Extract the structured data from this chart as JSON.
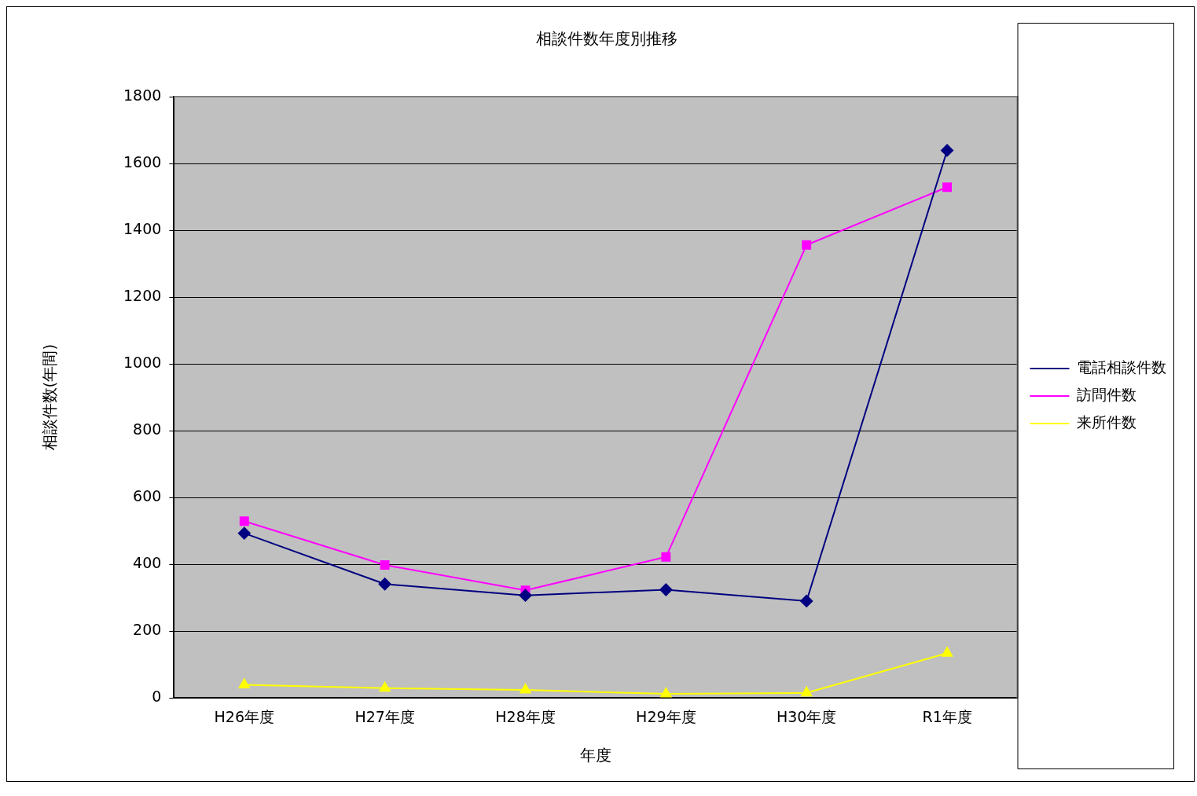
{
  "chart_data": {
    "type": "line",
    "title": "相談件数年度別推移",
    "xlabel": "年度",
    "ylabel": "相談件数(年間)",
    "categories": [
      "H26年度",
      "H27年度",
      "H28年度",
      "H29年度",
      "H30年度",
      "R1年度"
    ],
    "series": [
      {
        "name": "電話相談件数",
        "color": "#000080",
        "marker": "diamond",
        "values": [
          493,
          341,
          307,
          324,
          290,
          1639
        ]
      },
      {
        "name": "訪問件数",
        "color": "#ff00ff",
        "marker": "square",
        "values": [
          529,
          398,
          322,
          422,
          1356,
          1529
        ]
      },
      {
        "name": "来所件数",
        "color": "#ffff00",
        "marker": "triangle",
        "values": [
          39,
          29,
          24,
          12,
          15,
          134
        ]
      }
    ],
    "ylim": [
      0,
      1800
    ],
    "yticks": [
      0,
      200,
      400,
      600,
      800,
      1000,
      1200,
      1400,
      1600,
      1800
    ],
    "grid": "y",
    "legend": "right",
    "line_style": "solid"
  }
}
